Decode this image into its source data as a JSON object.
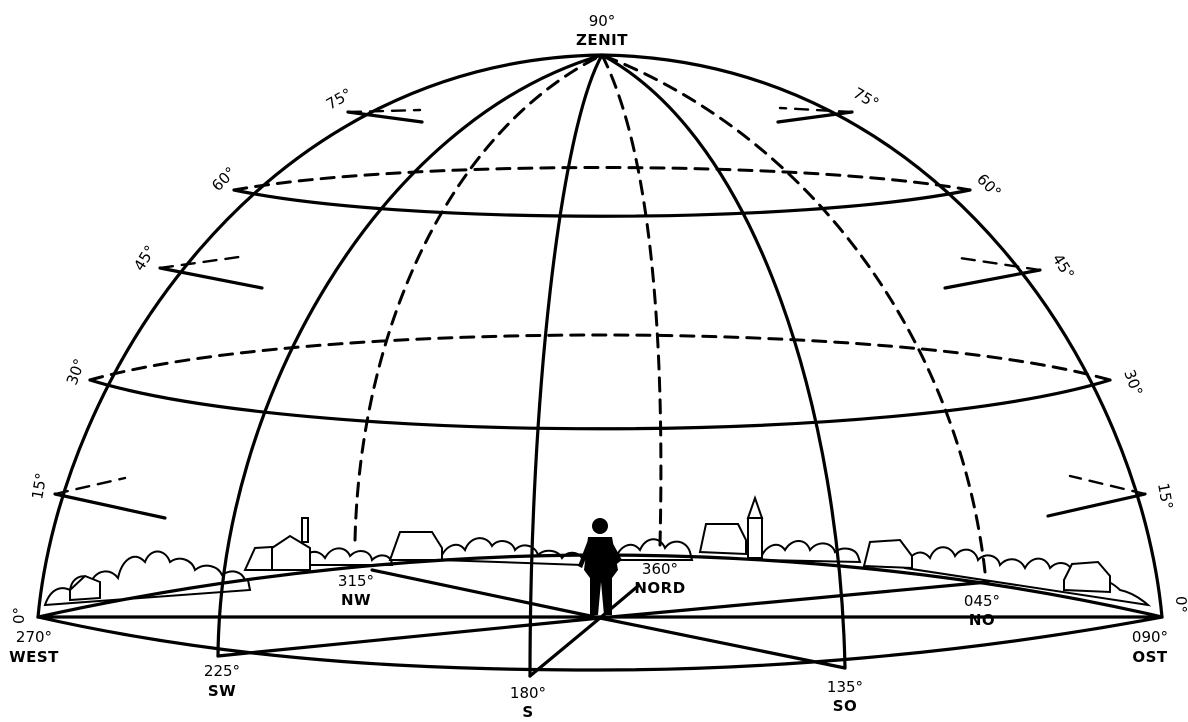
{
  "zenith": {
    "degree": "90°",
    "label": "ZENIT"
  },
  "altitude_labels_left": [
    "0°",
    "15°",
    "30°",
    "45°",
    "60°",
    "75°"
  ],
  "altitude_labels_right": [
    "0°",
    "15°",
    "30°",
    "45°",
    "60°",
    "75°"
  ],
  "azimuths": {
    "west": {
      "degree": "270°",
      "label": "WEST"
    },
    "sw": {
      "degree": "225°",
      "label": "SW"
    },
    "s": {
      "degree": "180°",
      "label": "S"
    },
    "so": {
      "degree": "135°",
      "label": "SO"
    },
    "ost": {
      "degree": "090°",
      "label": "OST"
    },
    "nw": {
      "degree": "315°",
      "label": "NW"
    },
    "nord": {
      "degree": "360°",
      "label": "NORD"
    },
    "no": {
      "degree": "045°",
      "label": "NO"
    }
  }
}
